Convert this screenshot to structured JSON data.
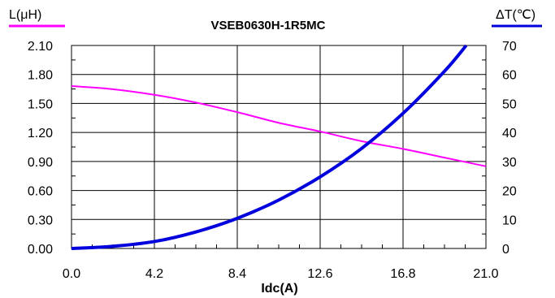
{
  "chart_data": {
    "type": "line",
    "title": "VSEB0630H-1R5MC",
    "xlabel": "Idc(A)",
    "y_left_label": "L(μH)",
    "y_right_label": "ΔT(℃)",
    "xlim": [
      0,
      21.0
    ],
    "ylim_left": [
      0,
      2.1
    ],
    "ylim_right": [
      0,
      70
    ],
    "x_ticks": [
      "0.0",
      "4.2",
      "8.4",
      "12.6",
      "16.8",
      "21.0"
    ],
    "y_left_ticks": [
      "0.00",
      "0.30",
      "0.60",
      "0.90",
      "1.20",
      "1.50",
      "1.80",
      "2.10"
    ],
    "y_right_ticks": [
      "0",
      "10",
      "20",
      "30",
      "40",
      "50",
      "60",
      "70"
    ],
    "grid": true,
    "colors": {
      "L": "#ff00ff",
      "dT": "#0000dd"
    },
    "series": [
      {
        "name": "L(μH)",
        "axis": "left",
        "x": [
          0,
          2,
          4.2,
          6.3,
          8.4,
          10.5,
          12.6,
          14.7,
          16.8,
          18.9,
          21.0
        ],
        "y": [
          1.68,
          1.65,
          1.59,
          1.51,
          1.41,
          1.3,
          1.21,
          1.11,
          1.03,
          0.94,
          0.85
        ]
      },
      {
        "name": "ΔT(℃)",
        "axis": "right",
        "x": [
          0,
          2,
          4.2,
          6.3,
          8.4,
          10.5,
          12.6,
          14.7,
          16.8,
          18.9,
          20.0
        ],
        "y": [
          0,
          0.7,
          2.4,
          5.7,
          10.4,
          16.7,
          24.7,
          34.5,
          46.6,
          61.1,
          70
        ]
      }
    ]
  }
}
